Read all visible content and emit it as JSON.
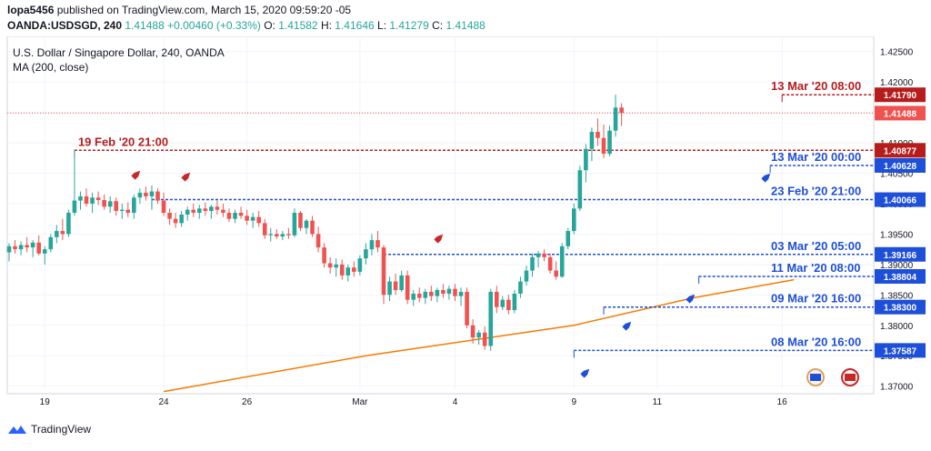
{
  "header": {
    "author": "lopa5456",
    "published": "published on TradingView.com, March 15, 2020 09:59:20 -05",
    "symbol": "OANDA:USDSGD, 240",
    "open": "1.41488",
    "change": "+0.00460 (+0.33%)",
    "o": "O: ",
    "o_val": "1.41582",
    "h": "H: ",
    "h_val": "1.41646",
    "l": "L: ",
    "l_val": "1.41279",
    "c": "C: ",
    "c_val": "1.41488"
  },
  "legend": {
    "title": "U.S. Dollar / Singapore Dollar, 240, OANDA",
    "ma": "MA (200, close)"
  },
  "footer": {
    "brand": "TradingView"
  },
  "colors": {
    "up": "#26a69a",
    "down": "#ef5350",
    "red_line": "#b71c1c",
    "blue_line": "#1e4fd8",
    "ma": "#f57c00"
  },
  "chart_data": {
    "type": "candlestick",
    "ylim": [
      1.3695,
      1.4275
    ],
    "y_ticks": [
      "1.42500",
      "1.42000",
      "1.41500",
      "1.41000",
      "1.40500",
      "1.40000",
      "1.39500",
      "1.39000",
      "1.38500",
      "1.38000",
      "1.37500",
      "1.37000"
    ],
    "x_ticks": [
      {
        "label": "19",
        "i": 6
      },
      {
        "label": "24",
        "i": 26
      },
      {
        "label": "26",
        "i": 40
      },
      {
        "label": "Mar",
        "i": 59
      },
      {
        "label": "4",
        "i": 75
      },
      {
        "label": "9",
        "i": 95
      },
      {
        "label": "11",
        "i": 109
      },
      {
        "label": "16",
        "i": 130
      }
    ],
    "candles": [
      [
        1.392,
        1.3935,
        1.3905,
        1.393
      ],
      [
        1.393,
        1.394,
        1.3918,
        1.3925
      ],
      [
        1.3925,
        1.3938,
        1.3915,
        1.3932
      ],
      [
        1.3932,
        1.3945,
        1.392,
        1.3928
      ],
      [
        1.3928,
        1.394,
        1.3912,
        1.3936
      ],
      [
        1.3936,
        1.3948,
        1.3915,
        1.3918
      ],
      [
        1.3918,
        1.393,
        1.39,
        1.3925
      ],
      [
        1.3925,
        1.395,
        1.392,
        1.3945
      ],
      [
        1.3945,
        1.3965,
        1.3935,
        1.3955
      ],
      [
        1.3955,
        1.3975,
        1.394,
        1.395
      ],
      [
        1.395,
        1.399,
        1.3945,
        1.3985
      ],
      [
        1.3985,
        1.4088,
        1.398,
        1.4005
      ],
      [
        1.4005,
        1.402,
        1.399,
        1.4012
      ],
      [
        1.4012,
        1.4025,
        1.3995,
        1.4
      ],
      [
        1.4,
        1.4018,
        1.3985,
        1.401
      ],
      [
        1.401,
        1.402,
        1.3998,
        1.4006
      ],
      [
        1.4006,
        1.4015,
        1.399,
        1.3995
      ],
      [
        1.3995,
        1.4012,
        1.3985,
        1.4004
      ],
      [
        1.4004,
        1.401,
        1.398,
        1.3988
      ],
      [
        1.3988,
        1.4,
        1.3975,
        1.399
      ],
      [
        1.399,
        1.4002,
        1.3978,
        1.3985
      ],
      [
        1.3985,
        1.4015,
        1.3975,
        1.401
      ],
      [
        1.401,
        1.4025,
        1.4,
        1.4018
      ],
      [
        1.4018,
        1.4028,
        1.4005,
        1.4012
      ],
      [
        1.4012,
        1.403,
        1.399,
        1.402
      ],
      [
        1.402,
        1.4025,
        1.4,
        1.4005
      ],
      [
        1.4005,
        1.4018,
        1.398,
        1.3985
      ],
      [
        1.3985,
        1.3992,
        1.3965,
        1.3975
      ],
      [
        1.3975,
        1.3985,
        1.396,
        1.3968
      ],
      [
        1.3968,
        1.3988,
        1.3962,
        1.3982
      ],
      [
        1.3982,
        1.3995,
        1.3972,
        1.399
      ],
      [
        1.399,
        1.4,
        1.3978,
        1.3985
      ],
      [
        1.3985,
        1.3998,
        1.3975,
        1.3992
      ],
      [
        1.3992,
        1.4002,
        1.398,
        1.3988
      ],
      [
        1.3988,
        1.3998,
        1.3975,
        1.3995
      ],
      [
        1.3995,
        1.4005,
        1.3982,
        1.399
      ],
      [
        1.399,
        1.4,
        1.3978,
        1.3985
      ],
      [
        1.3985,
        1.3992,
        1.397,
        1.3975
      ],
      [
        1.3975,
        1.399,
        1.3968,
        1.3985
      ],
      [
        1.3985,
        1.3995,
        1.3975,
        1.398
      ],
      [
        1.398,
        1.399,
        1.3965,
        1.3972
      ],
      [
        1.3972,
        1.3985,
        1.396,
        1.3978
      ],
      [
        1.3978,
        1.3988,
        1.3962,
        1.3968
      ],
      [
        1.3968,
        1.3975,
        1.3942,
        1.3948
      ],
      [
        1.3948,
        1.396,
        1.3938,
        1.395
      ],
      [
        1.395,
        1.3958,
        1.3942,
        1.3946
      ],
      [
        1.3946,
        1.3955,
        1.394,
        1.395
      ],
      [
        1.395,
        1.396,
        1.3942,
        1.3948
      ],
      [
        1.3948,
        1.3992,
        1.3945,
        1.3985
      ],
      [
        1.3985,
        1.3988,
        1.3955,
        1.396
      ],
      [
        1.396,
        1.3975,
        1.395,
        1.3972
      ],
      [
        1.3972,
        1.398,
        1.3945,
        1.395
      ],
      [
        1.395,
        1.3962,
        1.392,
        1.3928
      ],
      [
        1.3928,
        1.3935,
        1.3895,
        1.3902
      ],
      [
        1.3902,
        1.3912,
        1.3885,
        1.3895
      ],
      [
        1.3895,
        1.391,
        1.388,
        1.39
      ],
      [
        1.39,
        1.3908,
        1.3875,
        1.3882
      ],
      [
        1.3882,
        1.39,
        1.3872,
        1.3895
      ],
      [
        1.3895,
        1.3905,
        1.388,
        1.3888
      ],
      [
        1.3888,
        1.3915,
        1.3882,
        1.391
      ],
      [
        1.391,
        1.3935,
        1.39,
        1.3925
      ],
      [
        1.3925,
        1.395,
        1.3915,
        1.394
      ],
      [
        1.394,
        1.3955,
        1.392,
        1.3928
      ],
      [
        1.3928,
        1.3932,
        1.3835,
        1.385
      ],
      [
        1.385,
        1.388,
        1.384,
        1.3872
      ],
      [
        1.3872,
        1.3885,
        1.385,
        1.3858
      ],
      [
        1.3858,
        1.389,
        1.3855,
        1.3882
      ],
      [
        1.3882,
        1.389,
        1.3835,
        1.3842
      ],
      [
        1.3842,
        1.3858,
        1.3832,
        1.3852
      ],
      [
        1.3852,
        1.3862,
        1.3838,
        1.3845
      ],
      [
        1.3845,
        1.386,
        1.3835,
        1.3855
      ],
      [
        1.3855,
        1.3865,
        1.384,
        1.3848
      ],
      [
        1.3848,
        1.3862,
        1.3838,
        1.3858
      ],
      [
        1.3858,
        1.3868,
        1.3845,
        1.3852
      ],
      [
        1.3852,
        1.3865,
        1.3842,
        1.386
      ],
      [
        1.386,
        1.3868,
        1.384,
        1.3848
      ],
      [
        1.3848,
        1.3862,
        1.3832,
        1.3855
      ],
      [
        1.3855,
        1.3862,
        1.3795,
        1.38
      ],
      [
        1.38,
        1.381,
        1.377,
        1.378
      ],
      [
        1.378,
        1.3792,
        1.3768,
        1.3788
      ],
      [
        1.3788,
        1.3798,
        1.376,
        1.3766
      ],
      [
        1.3766,
        1.386,
        1.3758,
        1.3855
      ],
      [
        1.3855,
        1.3865,
        1.382,
        1.383
      ],
      [
        1.383,
        1.3848,
        1.3825,
        1.3842
      ],
      [
        1.3842,
        1.385,
        1.3818,
        1.3825
      ],
      [
        1.3825,
        1.3858,
        1.382,
        1.3852
      ],
      [
        1.3852,
        1.388,
        1.3845,
        1.3872
      ],
      [
        1.3872,
        1.3898,
        1.3865,
        1.389
      ],
      [
        1.389,
        1.3918,
        1.388,
        1.3912
      ],
      [
        1.3912,
        1.3922,
        1.3895,
        1.3918
      ],
      [
        1.3918,
        1.3925,
        1.3905,
        1.3912
      ],
      [
        1.3912,
        1.3918,
        1.3885,
        1.389
      ],
      [
        1.389,
        1.3905,
        1.3875,
        1.388
      ],
      [
        1.388,
        1.3935,
        1.3878,
        1.393
      ],
      [
        1.393,
        1.396,
        1.3925,
        1.3955
      ],
      [
        1.3955,
        1.4,
        1.395,
        1.3992
      ],
      [
        1.3992,
        1.4062,
        1.3988,
        1.4055
      ],
      [
        1.4055,
        1.4098,
        1.4035,
        1.409
      ],
      [
        1.409,
        1.4125,
        1.407,
        1.4118
      ],
      [
        1.4118,
        1.414,
        1.4095,
        1.4108
      ],
      [
        1.4108,
        1.413,
        1.4075,
        1.4082
      ],
      [
        1.4082,
        1.4128,
        1.4078,
        1.412
      ],
      [
        1.412,
        1.4179,
        1.411,
        1.4158
      ],
      [
        1.4158,
        1.4165,
        1.4128,
        1.4149
      ]
    ],
    "ma_line": [
      [
        26,
        1.3691
      ],
      [
        60,
        1.375
      ],
      [
        95,
        1.38
      ],
      [
        115,
        1.3845
      ],
      [
        132,
        1.3875
      ]
    ],
    "levels": [
      {
        "price": 1.4179,
        "label": "13 Mar '20 08:00",
        "price_label": "1.41790",
        "color": "red",
        "from": 130
      },
      {
        "price": 1.40877,
        "label": "19 Feb '20 21:00",
        "price_label": "1.40877",
        "color": "red",
        "from": 11
      },
      {
        "price": 1.40628,
        "label": "13 Mar '20 00:00",
        "price_label": "1.40628",
        "color": "blue",
        "from": 128
      },
      {
        "price": 1.40066,
        "label": "23 Feb '20 21:00",
        "price_label": "1.40066",
        "color": "blue",
        "from": 24
      },
      {
        "price": 1.39166,
        "label": "03 Mar '20 05:00",
        "price_label": "1.39166",
        "color": "blue",
        "from": 63
      },
      {
        "price": 1.38804,
        "label": "11 Mar '20 08:00",
        "price_label": "1.38804",
        "color": "blue",
        "from": 116
      },
      {
        "price": 1.383,
        "label": "09 Mar '20 16:00",
        "price_label": "1.38300",
        "color": "blue",
        "from": 100
      },
      {
        "price": 1.37587,
        "label": "08 Mar '20 16:00",
        "price_label": "1.37587",
        "color": "blue",
        "from": 95
      }
    ],
    "current_price": {
      "price": 1.41488,
      "label": "1.41488"
    }
  }
}
